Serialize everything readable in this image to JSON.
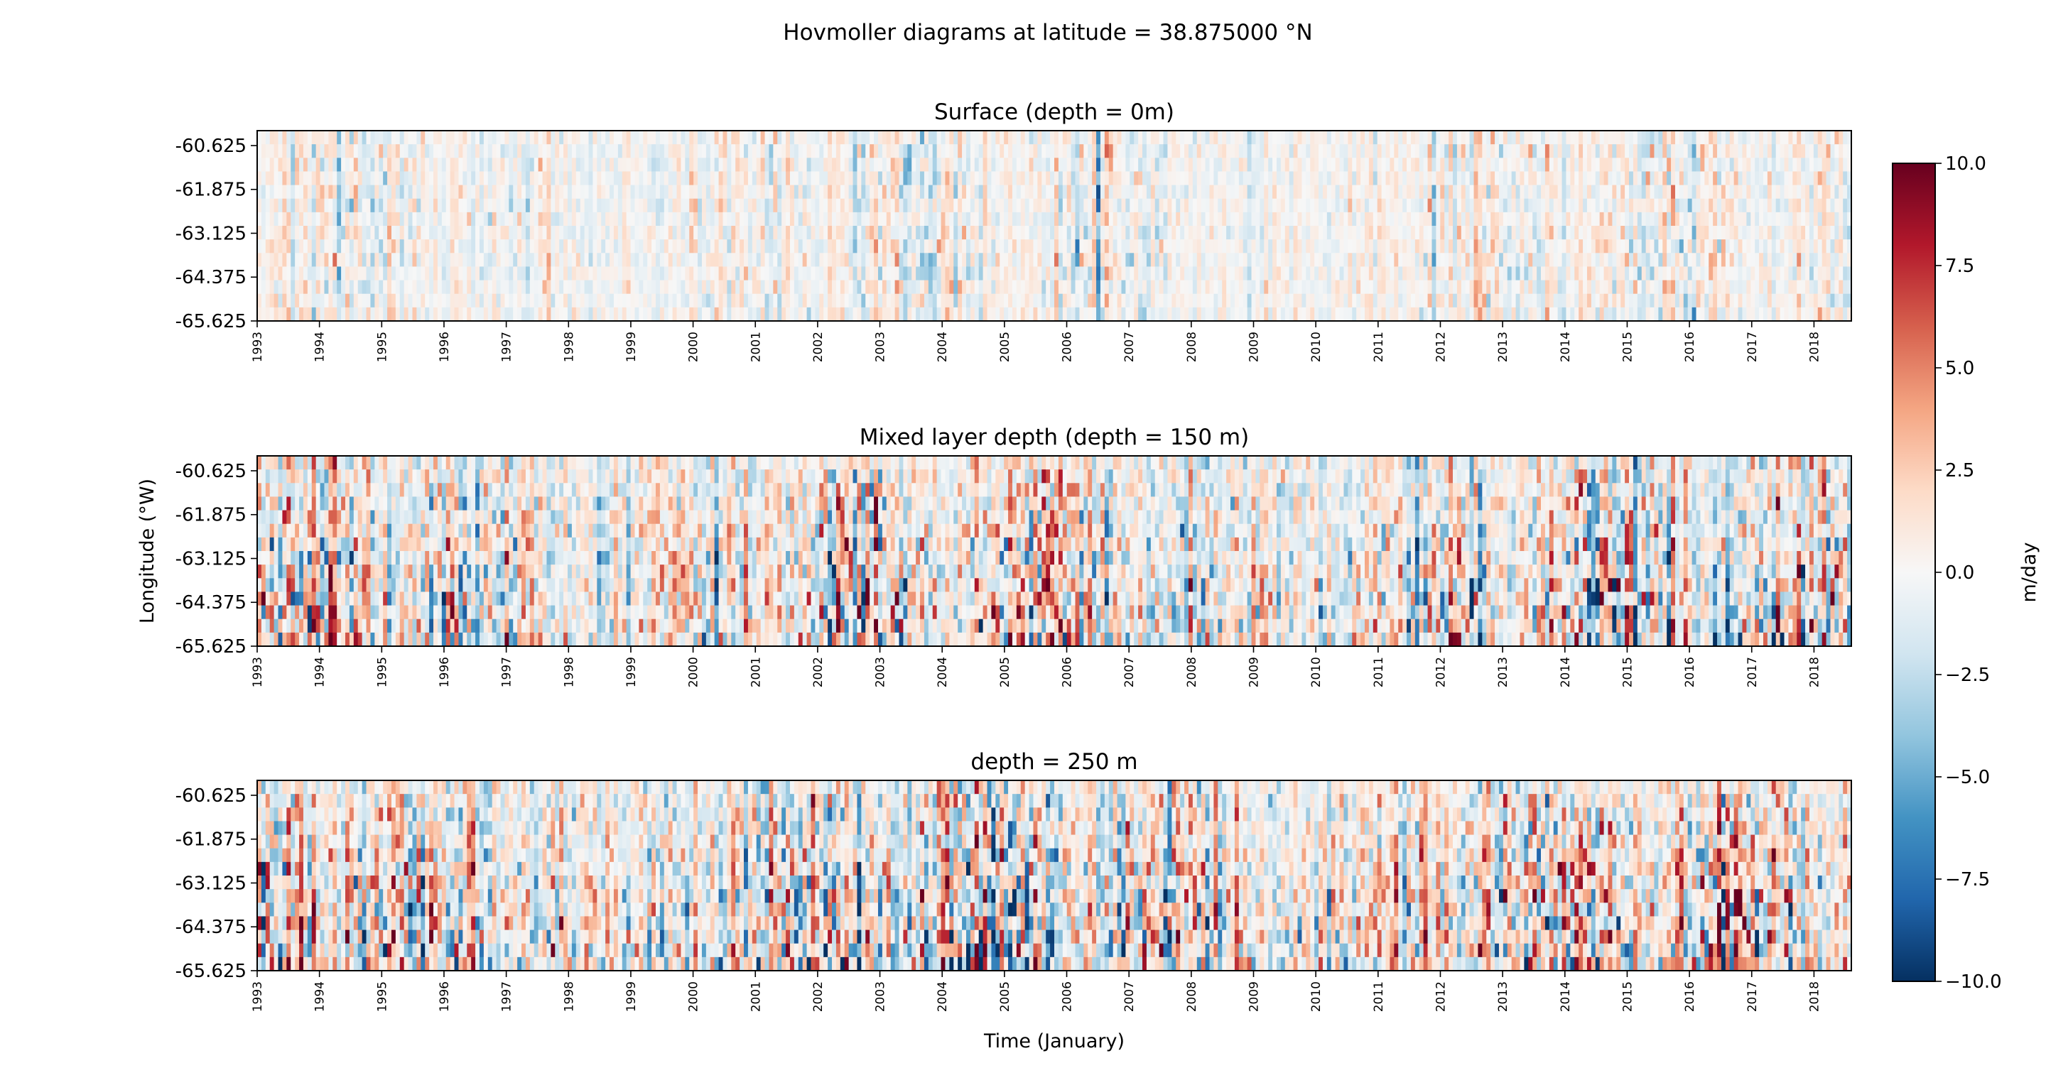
{
  "figure": {
    "suptitle": "Hovmoller diagrams at latitude = 38.875000 °N"
  },
  "chart_data": [
    {
      "type": "heatmap",
      "title": "Surface (depth = 0m)",
      "xlabel": "",
      "ylabel": "",
      "x_ticks": [
        "1993",
        "1994",
        "1995",
        "1996",
        "1997",
        "1998",
        "1999",
        "2000",
        "2001",
        "2002",
        "2003",
        "2004",
        "2005",
        "2006",
        "2007",
        "2008",
        "2009",
        "2010",
        "2011",
        "2012",
        "2013",
        "2014",
        "2015",
        "2016",
        "2017",
        "2018"
      ],
      "xlim": [
        1993,
        2018.6
      ],
      "y_ticks": [
        "-60.625",
        "-61.875",
        "-63.125",
        "-64.375",
        "-65.625"
      ],
      "ylim": [
        -65.625,
        -60.2
      ],
      "intensity": 0.35,
      "colormap": "RdBu_r",
      "clim": [
        -10,
        10
      ]
    },
    {
      "type": "heatmap",
      "title": "Mixed layer depth (depth = 150 m)",
      "xlabel": "",
      "ylabel": "Longitude (°W)",
      "x_ticks": [
        "1993",
        "1994",
        "1995",
        "1996",
        "1997",
        "1998",
        "1999",
        "2000",
        "2001",
        "2002",
        "2003",
        "2004",
        "2005",
        "2006",
        "2007",
        "2008",
        "2009",
        "2010",
        "2011",
        "2012",
        "2013",
        "2014",
        "2015",
        "2016",
        "2017",
        "2018"
      ],
      "xlim": [
        1993,
        2018.6
      ],
      "y_ticks": [
        "-60.625",
        "-61.875",
        "-63.125",
        "-64.375",
        "-65.625"
      ],
      "ylim": [
        -65.625,
        -60.2
      ],
      "intensity": 0.8,
      "colormap": "RdBu_r",
      "clim": [
        -10,
        10
      ]
    },
    {
      "type": "heatmap",
      "title": "depth = 250 m",
      "xlabel": "Time (January)",
      "ylabel": "",
      "x_ticks": [
        "1993",
        "1994",
        "1995",
        "1996",
        "1997",
        "1998",
        "1999",
        "2000",
        "2001",
        "2002",
        "2003",
        "2004",
        "2005",
        "2006",
        "2007",
        "2008",
        "2009",
        "2010",
        "2011",
        "2012",
        "2013",
        "2014",
        "2015",
        "2016",
        "2017",
        "2018"
      ],
      "xlim": [
        1993,
        2018.6
      ],
      "y_ticks": [
        "-60.625",
        "-61.875",
        "-63.125",
        "-64.375",
        "-65.625"
      ],
      "ylim": [
        -65.625,
        -60.2
      ],
      "intensity": 0.9,
      "colormap": "RdBu_r",
      "clim": [
        -10,
        10
      ]
    }
  ],
  "colorbar": {
    "label": "m/day",
    "ticks": [
      "10.0",
      "7.5",
      "5.0",
      "2.5",
      "0.0",
      "−2.5",
      "−5.0",
      "−7.5",
      "−10.0"
    ],
    "tick_values": [
      10,
      7.5,
      5,
      2.5,
      0,
      -2.5,
      -5,
      -7.5,
      -10
    ],
    "range": [
      -10,
      10
    ]
  }
}
